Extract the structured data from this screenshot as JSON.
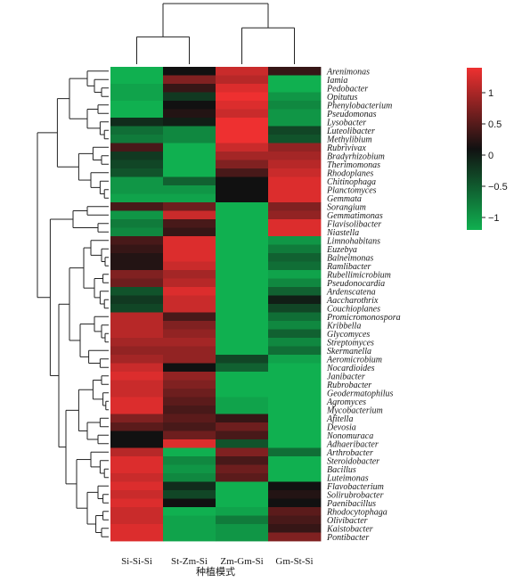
{
  "chart_data": {
    "type": "heatmap",
    "title": "",
    "xlabel": "种植模式",
    "ylabel": "",
    "columns": [
      "Si-Si-Si",
      "St-Zm-Si",
      "Zm-Gm-Si",
      "Gm-St-Si"
    ],
    "rows": [
      "Arenimonas",
      "Iamia",
      "Pedobacter",
      "Opitutus",
      "Phenylobacterium",
      "Pseudomonas",
      "Lysobacter",
      "Luteolibacter",
      "Methylibium",
      "Rubrivivax",
      "Bradyrhizobium",
      "Therimomonas",
      "Rhodoplanes",
      "Chitinophaga",
      "Planctomyces",
      "Gemmata",
      "Sorangium",
      "Gemmatimonas",
      "Flavisolibacter",
      "Niastella",
      "Limnohabitans",
      "Euzebya",
      "Balneimonas",
      "Ramlibacter",
      "Rubellimicrobium",
      "Pseudonocardia",
      "Ardenscatena",
      "Aaccharothrix",
      "Couchioplanes",
      "Promicromonospora",
      "Kribbella",
      "Glycomyces",
      "Streptomyces",
      "Skermanella",
      "Aeromicrobium",
      "Nocardioides",
      "Janibacter",
      "Rubrobacter",
      "Geodermatophilus",
      "Agromyces",
      "Mycobacterium",
      "Afitella",
      "Devosia",
      "Nonomuraca",
      "Adhaeribacter",
      "Arthrobacter",
      "Steroidobacter",
      "Bacillus",
      "Luteimonas",
      "Flavobacterium",
      "Solirubrobacter",
      "Paenibacillus",
      "Rhodocytophaga",
      "Olivibacter",
      "Kaistobacter",
      "Pontibacter"
    ],
    "values": [
      [
        -1.2,
        0.0,
        1.0,
        0.2
      ],
      [
        -1.2,
        0.6,
        0.9,
        -1.2
      ],
      [
        -1.1,
        0.2,
        1.1,
        -1.2
      ],
      [
        -1.1,
        -0.3,
        1.2,
        -1.0
      ],
      [
        -1.2,
        0.0,
        1.1,
        -0.9
      ],
      [
        -1.2,
        0.1,
        1.0,
        -1.0
      ],
      [
        -0.2,
        -0.1,
        1.2,
        -1.0
      ],
      [
        -0.7,
        -0.9,
        1.3,
        -0.4
      ],
      [
        -0.8,
        -0.9,
        1.2,
        -0.5
      ],
      [
        0.3,
        -1.2,
        1.0,
        0.7
      ],
      [
        -0.3,
        -1.2,
        0.8,
        0.8
      ],
      [
        -0.4,
        -1.2,
        0.6,
        0.9
      ],
      [
        -0.5,
        -1.2,
        0.3,
        1.0
      ],
      [
        -1.0,
        -0.6,
        0.0,
        1.1
      ],
      [
        -1.0,
        -1.0,
        0.0,
        1.1
      ],
      [
        -1.1,
        -1.1,
        0.0,
        1.1
      ],
      [
        0.3,
        0.5,
        -1.2,
        0.6
      ],
      [
        -1.0,
        1.0,
        -1.2,
        0.7
      ],
      [
        -0.8,
        0.3,
        -1.2,
        1.1
      ],
      [
        -0.9,
        0.2,
        -1.2,
        1.1
      ],
      [
        0.3,
        1.1,
        -1.2,
        -1.0
      ],
      [
        0.2,
        1.1,
        -1.2,
        -0.8
      ],
      [
        0.1,
        1.1,
        -1.2,
        -0.6
      ],
      [
        0.1,
        1.0,
        -1.2,
        -0.7
      ],
      [
        0.6,
        0.8,
        -1.2,
        -1.1
      ],
      [
        0.5,
        0.9,
        -1.2,
        -0.9
      ],
      [
        -0.5,
        1.1,
        -1.2,
        -0.6
      ],
      [
        -0.3,
        1.0,
        -1.2,
        -0.1
      ],
      [
        -0.4,
        1.0,
        -1.2,
        -0.4
      ],
      [
        0.9,
        0.3,
        -1.2,
        -0.7
      ],
      [
        0.9,
        0.6,
        -1.2,
        -0.9
      ],
      [
        0.9,
        0.7,
        -1.2,
        -0.6
      ],
      [
        0.8,
        0.8,
        -1.2,
        -0.9
      ],
      [
        0.7,
        0.7,
        -1.2,
        -0.7
      ],
      [
        0.8,
        0.7,
        -0.4,
        -1.1
      ],
      [
        1.0,
        0.0,
        -0.6,
        -1.2
      ],
      [
        1.1,
        0.7,
        -1.2,
        -1.2
      ],
      [
        1.0,
        0.6,
        -1.2,
        -1.2
      ],
      [
        1.0,
        0.5,
        -1.2,
        -1.2
      ],
      [
        1.1,
        0.4,
        -1.1,
        -1.2
      ],
      [
        1.1,
        0.3,
        -1.1,
        -1.2
      ],
      [
        0.6,
        0.4,
        0.2,
        -1.2
      ],
      [
        0.4,
        0.3,
        0.5,
        -1.2
      ],
      [
        0.0,
        0.5,
        0.3,
        -1.2
      ],
      [
        0.0,
        1.1,
        -0.5,
        -1.2
      ],
      [
        0.9,
        -1.2,
        0.6,
        -0.7
      ],
      [
        1.1,
        -0.9,
        0.3,
        -1.2
      ],
      [
        1.1,
        -1.0,
        0.5,
        -1.2
      ],
      [
        1.0,
        -0.9,
        0.4,
        -1.2
      ],
      [
        1.1,
        -0.2,
        -1.2,
        0.0
      ],
      [
        1.0,
        -0.4,
        -1.2,
        0.1
      ],
      [
        1.1,
        0.0,
        -1.2,
        0.0
      ],
      [
        1.0,
        -1.2,
        -1.1,
        0.4
      ],
      [
        1.0,
        -1.1,
        -0.8,
        0.3
      ],
      [
        1.1,
        -1.1,
        -1.0,
        0.2
      ],
      [
        1.1,
        -1.1,
        -1.0,
        0.6
      ]
    ],
    "colorbar": {
      "ticks": [
        1,
        0.5,
        0,
        -0.5,
        -1
      ],
      "labels": [
        "1",
        "0.5",
        "0",
        "−0.5",
        "−1"
      ],
      "range": [
        -1.2,
        1.4
      ]
    },
    "colormap": {
      "low": "#10b050",
      "mid": "#111111",
      "high": "#ee3030"
    },
    "row_dendrogram": true,
    "column_dendrogram": true
  }
}
